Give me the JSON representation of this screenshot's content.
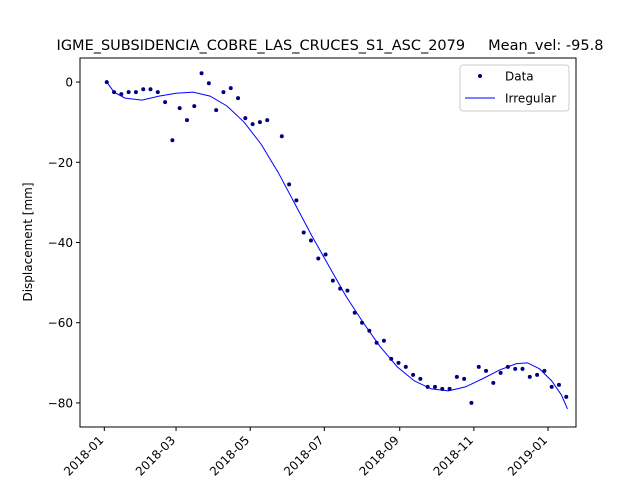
{
  "chart_data": {
    "type": "scatter",
    "title": "IGME_SUBSIDENCIA_COBRE_LAS_CRUCES_S1_ASC_2079     Mean_vel: -95.8",
    "xlabel": "",
    "ylabel": "Displacement [mm]",
    "x_type": "date",
    "xlim": [
      "2017-12-12",
      "2019-01-24"
    ],
    "ylim": [
      -86,
      6
    ],
    "x_ticks": [
      "2018-01",
      "2018-03",
      "2018-05",
      "2018-07",
      "2018-09",
      "2018-11",
      "2019-01"
    ],
    "x_tick_dates": [
      "2018-01-01",
      "2018-03-01",
      "2018-05-01",
      "2018-07-01",
      "2018-09-01",
      "2018-11-01",
      "2019-01-01"
    ],
    "y_ticks": [
      0,
      -20,
      -40,
      -60,
      -80
    ],
    "legend_position": "top-right",
    "grid": false,
    "series": [
      {
        "name": "Data",
        "style": "markers",
        "color": "#000080",
        "points": [
          [
            "2018-01-03",
            0.0
          ],
          [
            "2018-01-09",
            -2.5
          ],
          [
            "2018-01-15",
            -3.0
          ],
          [
            "2018-01-21",
            -2.5
          ],
          [
            "2018-01-27",
            -2.5
          ],
          [
            "2018-02-02",
            -1.8
          ],
          [
            "2018-02-08",
            -1.8
          ],
          [
            "2018-02-14",
            -2.5
          ],
          [
            "2018-02-20",
            -5.0
          ],
          [
            "2018-02-26",
            -14.5
          ],
          [
            "2018-03-04",
            -6.5
          ],
          [
            "2018-03-10",
            -9.5
          ],
          [
            "2018-03-16",
            -6.0
          ],
          [
            "2018-03-22",
            2.2
          ],
          [
            "2018-03-28",
            -0.3
          ],
          [
            "2018-04-03",
            -7.0
          ],
          [
            "2018-04-09",
            -2.5
          ],
          [
            "2018-04-15",
            -1.5
          ],
          [
            "2018-04-21",
            -4.0
          ],
          [
            "2018-04-27",
            -9.0
          ],
          [
            "2018-05-03",
            -10.5
          ],
          [
            "2018-05-09",
            -10.0
          ],
          [
            "2018-05-15",
            -9.5
          ],
          [
            "2018-05-27",
            -13.5
          ],
          [
            "2018-06-02",
            -25.5
          ],
          [
            "2018-06-08",
            -29.5
          ],
          [
            "2018-06-14",
            -37.5
          ],
          [
            "2018-06-20",
            -39.5
          ],
          [
            "2018-06-26",
            -44.0
          ],
          [
            "2018-07-02",
            -43.0
          ],
          [
            "2018-07-08",
            -49.5
          ],
          [
            "2018-07-14",
            -51.5
          ],
          [
            "2018-07-20",
            -52.0
          ],
          [
            "2018-07-26",
            -57.5
          ],
          [
            "2018-08-01",
            -60.0
          ],
          [
            "2018-08-07",
            -62.0
          ],
          [
            "2018-08-13",
            -65.0
          ],
          [
            "2018-08-19",
            -64.5
          ],
          [
            "2018-08-25",
            -69.0
          ],
          [
            "2018-08-31",
            -70.0
          ],
          [
            "2018-09-06",
            -71.0
          ],
          [
            "2018-09-12",
            -73.0
          ],
          [
            "2018-09-18",
            -74.0
          ],
          [
            "2018-09-24",
            -76.0
          ],
          [
            "2018-09-30",
            -76.0
          ],
          [
            "2018-10-06",
            -76.5
          ],
          [
            "2018-10-12",
            -76.5
          ],
          [
            "2018-10-18",
            -73.5
          ],
          [
            "2018-10-24",
            -74.0
          ],
          [
            "2018-10-30",
            -80.0
          ],
          [
            "2018-11-05",
            -71.0
          ],
          [
            "2018-11-11",
            -72.0
          ],
          [
            "2018-11-17",
            -75.0
          ],
          [
            "2018-11-23",
            -72.5
          ],
          [
            "2018-11-29",
            -71.0
          ],
          [
            "2018-12-05",
            -71.5
          ],
          [
            "2018-12-11",
            -71.5
          ],
          [
            "2018-12-17",
            -73.5
          ],
          [
            "2018-12-23",
            -73.0
          ],
          [
            "2018-12-29",
            -72.0
          ],
          [
            "2019-01-04",
            -76.0
          ],
          [
            "2019-01-10",
            -75.5
          ],
          [
            "2019-01-16",
            -78.5
          ]
        ]
      },
      {
        "name": "Irregular",
        "style": "line",
        "color": "#0000ff",
        "points": [
          [
            "2018-01-03",
            0.0
          ],
          [
            "2018-01-09",
            -2.5
          ],
          [
            "2018-01-18",
            -4.0
          ],
          [
            "2018-02-01",
            -4.5
          ],
          [
            "2018-02-15",
            -3.5
          ],
          [
            "2018-03-01",
            -2.8
          ],
          [
            "2018-03-15",
            -2.5
          ],
          [
            "2018-03-29",
            -3.5
          ],
          [
            "2018-04-12",
            -6.0
          ],
          [
            "2018-04-26",
            -10.0
          ],
          [
            "2018-05-10",
            -15.5
          ],
          [
            "2018-05-24",
            -22.5
          ],
          [
            "2018-06-07",
            -30.5
          ],
          [
            "2018-06-21",
            -38.5
          ],
          [
            "2018-07-05",
            -46.0
          ],
          [
            "2018-07-19",
            -53.5
          ],
          [
            "2018-08-02",
            -60.0
          ],
          [
            "2018-08-16",
            -66.0
          ],
          [
            "2018-08-30",
            -71.0
          ],
          [
            "2018-09-13",
            -74.5
          ],
          [
            "2018-09-27",
            -76.5
          ],
          [
            "2018-10-11",
            -77.0
          ],
          [
            "2018-10-25",
            -76.0
          ],
          [
            "2018-11-08",
            -74.0
          ],
          [
            "2018-11-22",
            -71.8
          ],
          [
            "2018-12-06",
            -70.2
          ],
          [
            "2018-12-15",
            -70.0
          ],
          [
            "2018-12-25",
            -71.5
          ],
          [
            "2019-01-04",
            -74.5
          ],
          [
            "2019-01-12",
            -78.0
          ],
          [
            "2019-01-17",
            -81.5
          ]
        ]
      }
    ]
  }
}
